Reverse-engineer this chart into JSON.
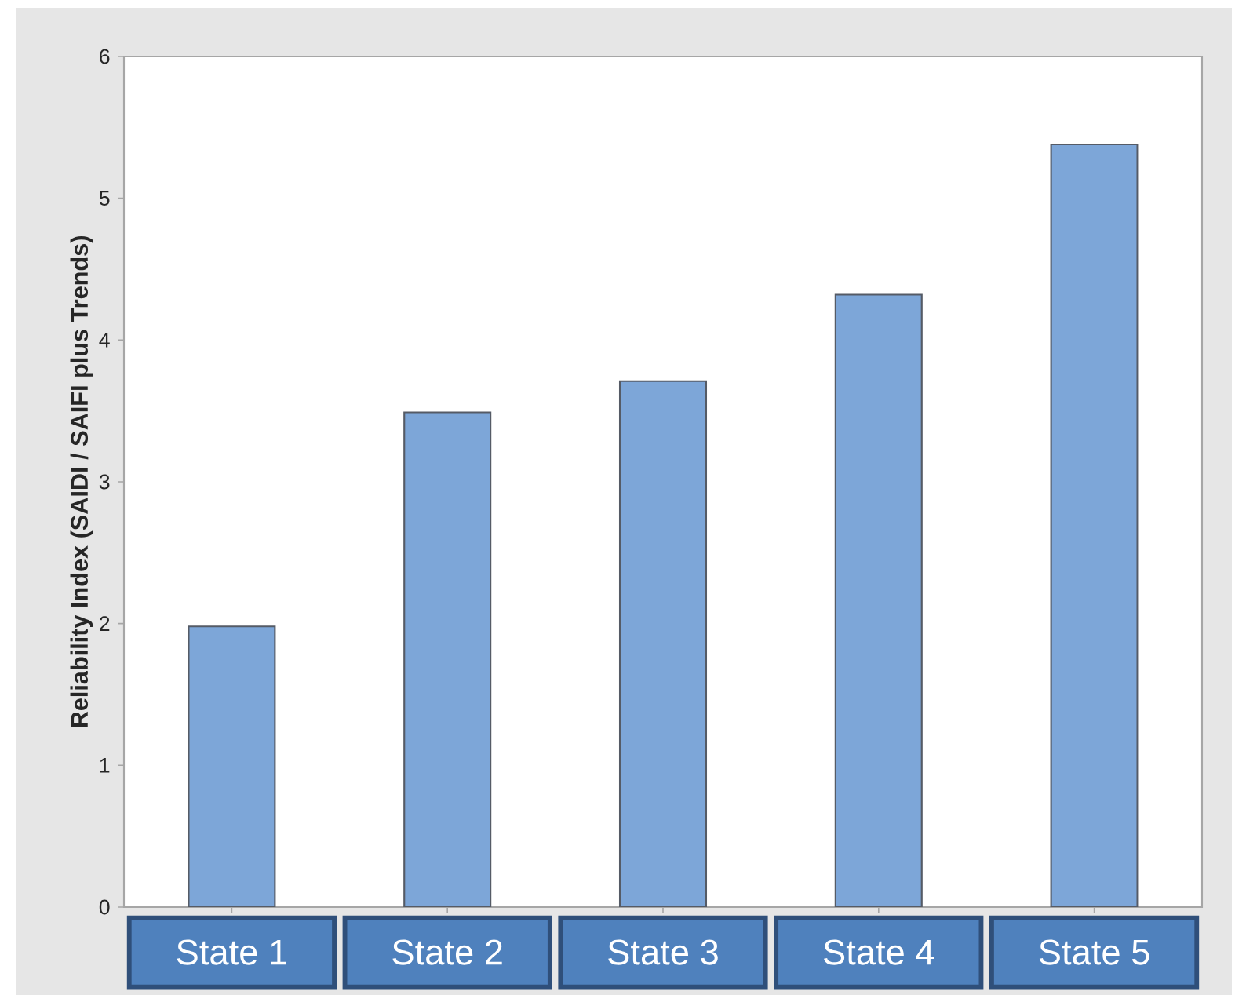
{
  "chart_data": {
    "type": "bar",
    "ylabel": "Reliability Index (SAIDI / SAIFI plus Trends)",
    "categories": [
      "State 1",
      "State 2",
      "State 3",
      "State 4",
      "State 5"
    ],
    "values": [
      1.98,
      3.49,
      3.71,
      4.32,
      5.38
    ],
    "color": "#7da6d8",
    "ylim": [
      0,
      6
    ],
    "yticks": [
      0,
      1,
      2,
      3,
      4,
      5,
      6
    ]
  }
}
